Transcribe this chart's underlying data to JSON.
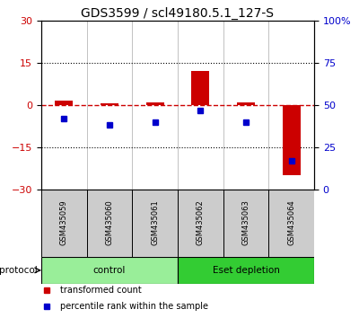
{
  "title": "GDS3599 / scl49180.5.1_127-S",
  "samples": [
    "GSM435059",
    "GSM435060",
    "GSM435061",
    "GSM435062",
    "GSM435063",
    "GSM435064"
  ],
  "red_bars": [
    1.5,
    0.5,
    1.0,
    12.0,
    1.0,
    -25.0
  ],
  "blue_dots": [
    -5.0,
    -7.0,
    -6.0,
    -2.0,
    -6.0,
    -20.0
  ],
  "ylim_left": [
    -30,
    30
  ],
  "ylim_right": [
    0,
    100
  ],
  "yticks_left": [
    -30,
    -15,
    0,
    15,
    30
  ],
  "yticks_right": [
    0,
    25,
    50,
    75,
    100
  ],
  "ytick_labels_right": [
    "0",
    "25",
    "50",
    "75",
    "100%"
  ],
  "hlines": [
    15,
    -15
  ],
  "dashed_zero_color": "#cc0000",
  "bar_color": "#cc0000",
  "dot_color": "#0000cc",
  "protocol_groups": [
    {
      "label": "control",
      "start": 0,
      "end": 2,
      "color": "#99ee99"
    },
    {
      "label": "Eset depletion",
      "start": 3,
      "end": 5,
      "color": "#33cc33"
    }
  ],
  "protocol_label": "protocol",
  "legend_items": [
    {
      "color": "#cc0000",
      "label": "transformed count"
    },
    {
      "color": "#0000cc",
      "label": "percentile rank within the sample"
    }
  ],
  "sample_box_color": "#cccccc",
  "background_color": "#ffffff",
  "title_fontsize": 10,
  "tick_fontsize": 8,
  "label_fontsize": 8
}
